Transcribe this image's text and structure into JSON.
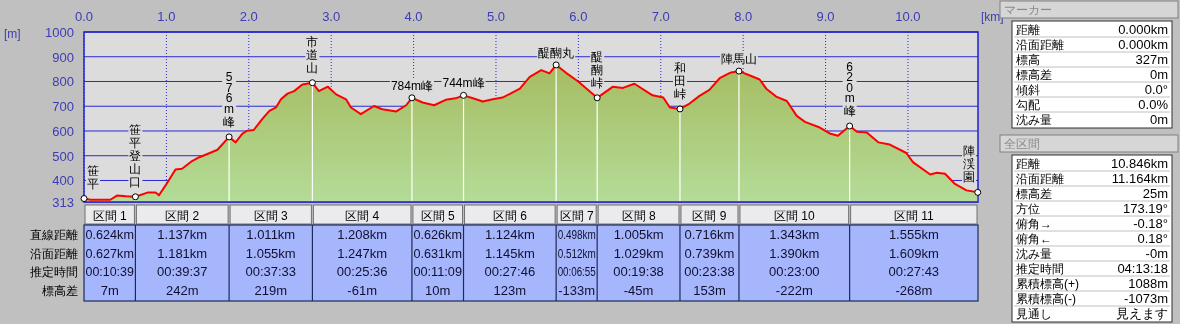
{
  "chart_data": [
    {
      "type": "area",
      "xlabel": "[km]",
      "ylabel": "[m]",
      "color": "#ff0000",
      "grid": true,
      "xlim": [
        0,
        10.85
      ],
      "ylim": [
        313,
        1000
      ],
      "xticks": [
        {
          "value": 0,
          "label": "0.0"
        },
        {
          "value": 1,
          "label": "1.0"
        },
        {
          "value": 2,
          "label": "2.0"
        },
        {
          "value": 3,
          "label": "3.0"
        },
        {
          "value": 4,
          "label": "4.0"
        },
        {
          "value": 5,
          "label": "5.0"
        },
        {
          "value": 6,
          "label": "6.0"
        },
        {
          "value": 7,
          "label": "7.0"
        },
        {
          "value": 8,
          "label": "8.0"
        },
        {
          "value": 9,
          "label": "9.0"
        },
        {
          "value": 10,
          "label": "10.0"
        }
      ],
      "yticks": [
        313,
        400,
        500,
        600,
        700,
        800,
        900,
        1000
      ],
      "x": [
        0,
        0.08,
        0.32,
        0.4,
        0.51,
        0.624,
        0.77,
        0.87,
        0.91,
        0.99,
        1.11,
        1.19,
        1.3,
        1.4,
        1.52,
        1.62,
        1.761,
        1.84,
        1.92,
        1.98,
        2.06,
        2.17,
        2.25,
        2.33,
        2.39,
        2.47,
        2.55,
        2.65,
        2.772,
        2.85,
        2.96,
        3.06,
        3.18,
        3.24,
        3.36,
        3.52,
        3.62,
        3.79,
        3.91,
        3.98,
        4.11,
        4.25,
        4.39,
        4.51,
        4.606,
        4.72,
        4.84,
        4.96,
        5.08,
        5.29,
        5.41,
        5.55,
        5.65,
        5.73,
        5.85,
        5.99,
        6.1,
        6.228,
        6.42,
        6.54,
        6.68,
        6.9,
        7.03,
        7.11,
        7.233,
        7.35,
        7.47,
        7.59,
        7.72,
        7.84,
        7.949,
        8.12,
        8.2,
        8.28,
        8.4,
        8.53,
        8.65,
        8.75,
        8.93,
        9.05,
        9.15,
        9.292,
        9.38,
        9.5,
        9.64,
        9.78,
        9.98,
        10.06,
        10.27,
        10.35,
        10.45,
        10.57,
        10.71,
        10.847
      ],
      "values": [
        327,
        322,
        322,
        339,
        336,
        334,
        351,
        351,
        340,
        380,
        444,
        447,
        476,
        494,
        510,
        524,
        576,
        554,
        588,
        601,
        604,
        651,
        681,
        695,
        728,
        751,
        761,
        788,
        795,
        761,
        779,
        748,
        728,
        695,
        668,
        701,
        688,
        679,
        704,
        734,
        715,
        704,
        726,
        732,
        744,
        732,
        719,
        728,
        735,
        771,
        819,
        846,
        833,
        867,
        835,
        802,
        771,
        734,
        779,
        774,
        791,
        744,
        735,
        695,
        689,
        711,
        742,
        766,
        815,
        835,
        842,
        819,
        808,
        771,
        739,
        721,
        661,
        637,
        614,
        590,
        581,
        620,
        597,
        594,
        554,
        545,
        511,
        474,
        424,
        431,
        427,
        386,
        360,
        352
      ],
      "annotations": [
        {
          "text": "笹平",
          "x": 0,
          "y": 327
        },
        {
          "text": "笹平登山口",
          "x": 0.624,
          "y": 334
        },
        {
          "text": "576m峰",
          "x": 1.761,
          "y": 576
        },
        {
          "text": "市道山",
          "x": 2.772,
          "y": 795
        },
        {
          "text": "784m峰",
          "x": 3.98,
          "y": 734
        },
        {
          "text": "744m峰",
          "x": 4.606,
          "y": 744
        },
        {
          "text": "醍醐丸",
          "x": 5.73,
          "y": 867
        },
        {
          "text": "醍醐峠",
          "x": 6.228,
          "y": 734
        },
        {
          "text": "和田峠",
          "x": 7.233,
          "y": 689
        },
        {
          "text": "陣馬山",
          "x": 7.949,
          "y": 842
        },
        {
          "text": "620m峰",
          "x": 9.292,
          "y": 620
        },
        {
          "text": "陣渓園",
          "x": 10.847,
          "y": 352
        }
      ]
    },
    {
      "type": "other",
      "categories": [
        "区間 1",
        "区間 2",
        "区間 3",
        "区間 4",
        "区間 5",
        "区間 6",
        "区間 7",
        "区間 8",
        "区間 9",
        "区間 10",
        "区間 11"
      ],
      "y_categories": [
        "直線距離",
        "沿面距離",
        "推定時間",
        "標高差"
      ],
      "cell_labels": [
        [
          "0.624km",
          "1.137km",
          "1.011km",
          "1.208km",
          "0.626km",
          "1.124km",
          "0.498km",
          "1.005km",
          "0.716km",
          "1.343km",
          "1.555km"
        ],
        [
          "0.627km",
          "1.181km",
          "1.055km",
          "1.247km",
          "0.631km",
          "1.145km",
          "0.512km",
          "1.029km",
          "0.739km",
          "1.390km",
          "1.609km"
        ],
        [
          "00:10:39",
          "00:39:37",
          "00:37:33",
          "00:25:36",
          "00:11:09",
          "00:27:46",
          "00:06:55",
          "00:19:38",
          "00:23:38",
          "00:23:00",
          "00:27:43"
        ],
        [
          "7m",
          "242m",
          "219m",
          "-61m",
          "10m",
          "123m",
          "-133m",
          "-45m",
          "153m",
          "-222m",
          "-268m"
        ]
      ]
    },
    {
      "type": "other",
      "title": "マーカー",
      "y_categories": [
        "距離",
        "沿面距離",
        "標高",
        "標高差",
        "傾斜",
        "勾配",
        "沈み量"
      ],
      "cell_labels": [
        [
          "0.000km"
        ],
        [
          "0.000km"
        ],
        [
          "327m"
        ],
        [
          "0m"
        ],
        [
          "0.0°"
        ],
        [
          "0.0%"
        ],
        [
          "0m"
        ]
      ]
    },
    {
      "type": "other",
      "title": "全区間",
      "y_categories": [
        "距離",
        "沿面距離",
        "標高差",
        "方位",
        "俯角→",
        "俯角←",
        "沈み量",
        "推定時間",
        "累積標高(+)",
        "累積標高(-)",
        "見通し"
      ],
      "cell_labels": [
        [
          "10.846km"
        ],
        [
          "11.164km"
        ],
        [
          "25m"
        ],
        [
          "173.19°"
        ],
        [
          "-0.18°"
        ],
        [
          "0.18°"
        ],
        [
          "-0m"
        ],
        [
          "04:13:18"
        ],
        [
          "1088m"
        ],
        [
          "-1073m"
        ],
        [
          "見えます"
        ]
      ]
    }
  ]
}
